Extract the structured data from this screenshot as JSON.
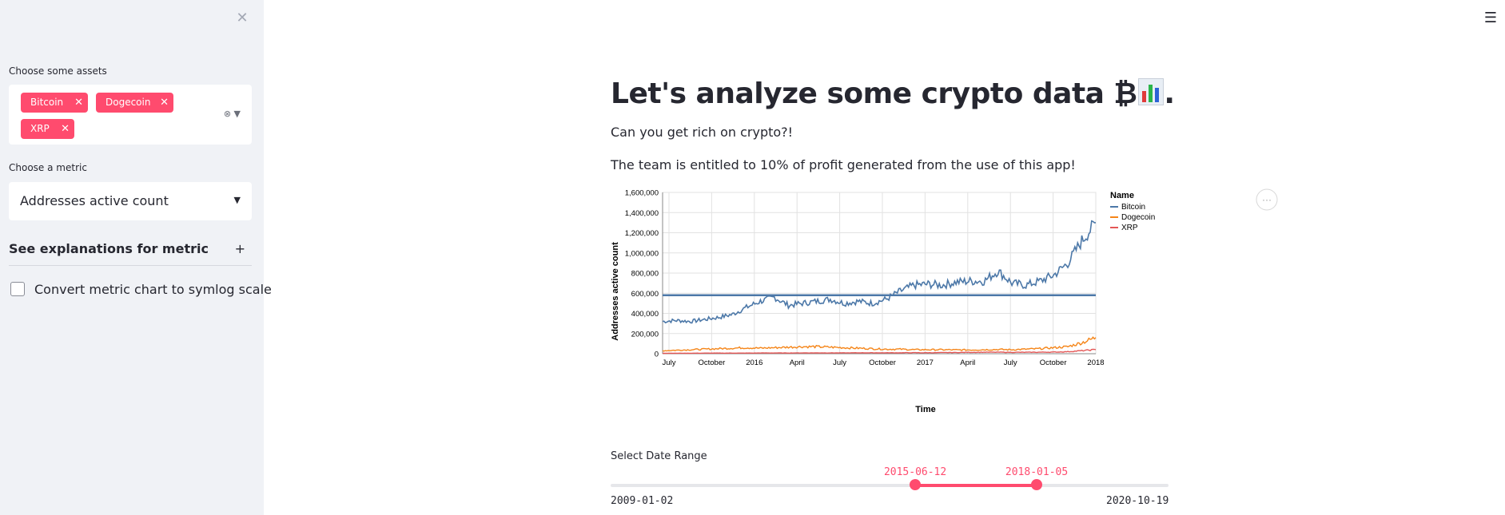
{
  "sidebar": {
    "close_icon": "close-icon",
    "assets_label": "Choose some assets",
    "selected_assets": [
      "Bitcoin",
      "Dogecoin",
      "XRP"
    ],
    "metric_label": "Choose a metric",
    "metric_value": "Addresses active count",
    "expander_label": "See explanations for metric",
    "expander_icon": "+",
    "checkbox_label": "Convert metric chart to symlog scale",
    "checkbox_checked": false
  },
  "main": {
    "menu_icon": "☰",
    "title": "Let's analyze some crypto data ₿",
    "title_suffix": ".",
    "intro": "Can you get rich on crypto?!",
    "note": "The team is entitled to 10% of profit generated from the use of this app!",
    "date_range_label": "Select Date Range",
    "date_range_start": "2015-06-12",
    "date_range_end": "2018-01-05",
    "date_range_min": "2009-01-02",
    "date_range_max": "2020-10-19"
  },
  "chart_data": {
    "type": "line",
    "xlabel": "Time",
    "ylabel": "Addresses active count",
    "ylim": [
      0,
      1600000
    ],
    "x_ticks": [
      "July",
      "October",
      "2016",
      "April",
      "July",
      "October",
      "2017",
      "April",
      "July",
      "October",
      "2018"
    ],
    "y_ticks": [
      "0",
      "200,000",
      "400,000",
      "600,000",
      "800,000",
      "1,000,000",
      "1,200,000",
      "1,400,000",
      "1,600,000"
    ],
    "legend_title": "Name",
    "legend_position": "right",
    "grid": true,
    "x": [
      "2015-06",
      "2015-07",
      "2015-08",
      "2015-09",
      "2015-10",
      "2015-11",
      "2015-12",
      "2016-01",
      "2016-02",
      "2016-03",
      "2016-04",
      "2016-05",
      "2016-06",
      "2016-07",
      "2016-08",
      "2016-09",
      "2016-10",
      "2016-11",
      "2016-12",
      "2017-01",
      "2017-02",
      "2017-03",
      "2017-04",
      "2017-05",
      "2017-06",
      "2017-07",
      "2017-08",
      "2017-09",
      "2017-10",
      "2017-11",
      "2017-12",
      "2018-01"
    ],
    "series": [
      {
        "name": "Bitcoin",
        "color": "#4c78a8",
        "values": [
          320000,
          330000,
          320000,
          340000,
          360000,
          390000,
          460000,
          520000,
          560000,
          480000,
          500000,
          520000,
          540000,
          500000,
          520000,
          500000,
          540000,
          620000,
          680000,
          690000,
          680000,
          710000,
          720000,
          720000,
          820000,
          700000,
          680000,
          720000,
          780000,
          900000,
          1120000,
          1300000
        ]
      },
      {
        "name": "Dogecoin",
        "color": "#f58518",
        "values": [
          30000,
          35000,
          40000,
          45000,
          50000,
          55000,
          60000,
          55000,
          60000,
          65000,
          70000,
          70000,
          65000,
          60000,
          55000,
          50000,
          45000,
          45000,
          40000,
          40000,
          40000,
          38000,
          38000,
          40000,
          42000,
          40000,
          45000,
          50000,
          60000,
          70000,
          110000,
          160000
        ]
      },
      {
        "name": "XRP",
        "color": "#e45756",
        "values": [
          5000,
          5000,
          5000,
          6000,
          6000,
          6000,
          6000,
          7000,
          7000,
          7000,
          8000,
          8000,
          8000,
          8000,
          9000,
          9000,
          9000,
          9000,
          10000,
          10000,
          11000,
          12000,
          14000,
          15000,
          15000,
          14000,
          14000,
          15000,
          16000,
          20000,
          30000,
          40000
        ]
      }
    ],
    "reference_line": {
      "series": "Bitcoin",
      "value": 580000
    }
  }
}
